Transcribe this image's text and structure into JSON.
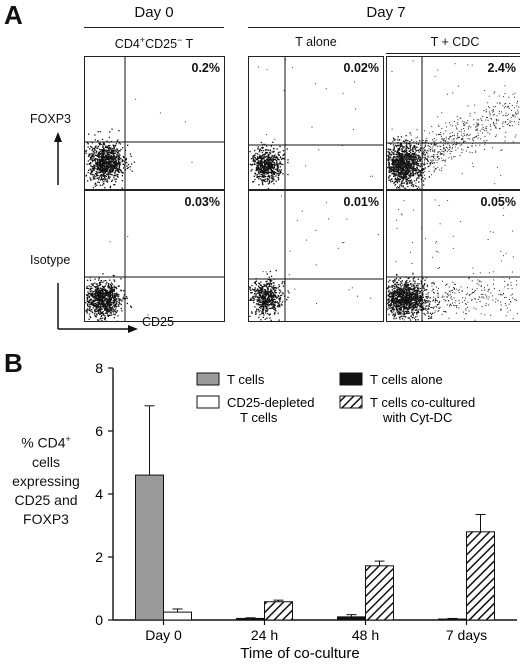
{
  "panel_a": {
    "letter": "A",
    "day0": "Day 0",
    "day7": "Day 7",
    "col1": "CD4+CD25− T",
    "col1_main": "CD4",
    "col1_sup1": "+",
    "col1_mid": "CD25",
    "col1_sup2": "−",
    "col1_end": " T",
    "col2": "T alone",
    "col3": "T + CDC",
    "row1_label": "FOXP3",
    "row2_label": "Isotype",
    "x_label": "CD25",
    "percents": {
      "r1c1": "0.2%",
      "r1c2": "0.02%",
      "r1c3": "2.4%",
      "r2c1": "0.03%",
      "r2c2": "0.01%",
      "r2c3": "0.05%"
    }
  },
  "panel_b": {
    "letter": "B",
    "ylabel_lines": [
      "% CD4",
      "cells",
      "expressing",
      "CD25 and",
      "FOXP3"
    ],
    "ylabel_sup": "+",
    "xlabel": "Time of co-culture",
    "legend": {
      "t_cells": "T cells",
      "cd25_depleted_1": "CD25-depleted",
      "cd25_depleted_2": "T cells",
      "t_alone": "T cells alone",
      "cocultured_1": "T cells co-cultured",
      "cocultured_2": "with Cyt-DC"
    }
  },
  "chart_data": {
    "type": "bar",
    "categories": [
      "Day 0",
      "24 h",
      "48 h",
      "7 days"
    ],
    "ylim": [
      0,
      8
    ],
    "yticks": [
      0,
      2,
      4,
      6,
      8
    ],
    "xlabel": "Time of co-culture",
    "ylabel": "% CD4+ cells expressing CD25 and FOXP3",
    "series": [
      {
        "name": "T cells",
        "values": [
          4.6,
          null,
          null,
          null
        ],
        "errors": [
          2.2,
          null,
          null,
          null
        ],
        "fill": "#9a9a9a"
      },
      {
        "name": "CD25-depleted T cells",
        "values": [
          0.25,
          null,
          null,
          null
        ],
        "errors": [
          0.1,
          null,
          null,
          null
        ],
        "fill": "#ffffff"
      },
      {
        "name": "T cells alone",
        "values": [
          null,
          0.05,
          0.1,
          0.03
        ],
        "errors": [
          null,
          0.02,
          0.07,
          0.02
        ],
        "fill": "#111111"
      },
      {
        "name": "T cells co-cultured with Cyt-DC",
        "values": [
          null,
          0.58,
          1.72,
          2.8
        ],
        "errors": [
          null,
          0.05,
          0.15,
          0.55
        ],
        "fill": "hatch"
      }
    ]
  }
}
